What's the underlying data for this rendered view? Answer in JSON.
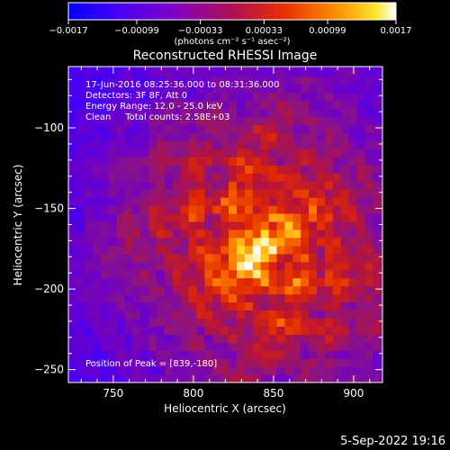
{
  "chart_data": {
    "type": "heatmap",
    "title": "Reconstructed RHESSI Image",
    "xlabel": "Heliocentric X (arcsec)",
    "ylabel": "Heliocentric Y (arcsec)",
    "xlim": [
      722,
      918
    ],
    "ylim": [
      -258,
      -62
    ],
    "xticks": [
      750,
      800,
      850,
      900
    ],
    "yticks": [
      -250,
      -200,
      -150,
      -100
    ],
    "colorbar": {
      "colormap": "rhessi-fire",
      "range": [
        -0.0017,
        0.0017
      ],
      "tick_values": [
        -0.0017,
        -0.00099,
        -0.00033,
        0.00033,
        0.00099,
        0.0017
      ],
      "tick_labels": [
        "-0.0017",
        "-0.00099",
        "-0.00033",
        "0.00033",
        "0.00099",
        "0.0017"
      ],
      "unit_label": "(photons cm⁻² s⁻¹ asec⁻²)"
    },
    "annotations": [
      "17-Jun-2016 08:25:36.000 to 08:31:36.000",
      "Detectors: 3F 8F, Att 0",
      "Energy Range: 12.0 - 25.0 keV",
      "Clean     Total counts: 2.58E+03"
    ],
    "peak_label": "Position of Peak = [839,-180]",
    "peak_position": [
      839,
      -180
    ],
    "source_center": [
      845,
      -172
    ],
    "grid": false
  },
  "footer": {
    "date": "5-Sep-2022 19:16"
  },
  "colors": {
    "background": "#000000",
    "text": "#ffffff"
  }
}
